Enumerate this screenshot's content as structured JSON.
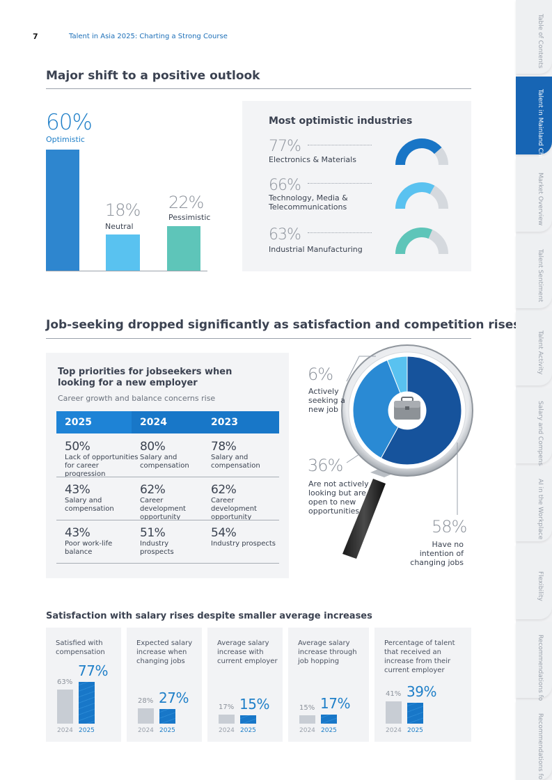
{
  "header": {
    "page_number": "7",
    "doc_title": "Talent in Asia 2025: Charting a Strong Course"
  },
  "outlook": {
    "title": "Major shift to a positive outlook",
    "bars": [
      {
        "pct": "60%",
        "label": "Optimistic",
        "value": 60,
        "color": "#2e86cf"
      },
      {
        "pct": "18%",
        "label": "Neutral",
        "value": 18,
        "color": "#59c2f0"
      },
      {
        "pct": "22%",
        "label": "Pessimistic",
        "value": 22,
        "color": "#5ec5b9"
      }
    ]
  },
  "industries": {
    "title": "Most optimistic industries",
    "items": [
      {
        "pct": "77%",
        "label": "Electronics & Materials",
        "value": 77,
        "color": "#1875c6"
      },
      {
        "pct": "66%",
        "label": "Technology, Media & Telecommunications",
        "value": 66,
        "color": "#5ac2f0"
      },
      {
        "pct": "63%",
        "label": "Industrial Manufacturing",
        "value": 63,
        "color": "#5ec5b9"
      }
    ]
  },
  "jobseeking": {
    "title": "Job-seeking dropped significantly as satisfaction and competition rises",
    "priorities_title": "Top priorities for jobseekers when looking for a new employer",
    "priorities_subtitle": "Career growth and balance concerns rise",
    "years": [
      "2025",
      "2024",
      "2023"
    ],
    "rows": [
      [
        {
          "pct": "50%",
          "label": "Lack of opportunities for career progression"
        },
        {
          "pct": "80%",
          "label": "Salary and compensation"
        },
        {
          "pct": "78%",
          "label": "Salary and compensation"
        }
      ],
      [
        {
          "pct": "43%",
          "label": "Salary and compensation"
        },
        {
          "pct": "62%",
          "label": "Career development opportunity"
        },
        {
          "pct": "62%",
          "label": "Career development opportunity"
        }
      ],
      [
        {
          "pct": "43%",
          "label": "Poor work-life balance"
        },
        {
          "pct": "51%",
          "label": "Industry prospects"
        },
        {
          "pct": "54%",
          "label": "Industry prospects"
        }
      ]
    ],
    "donut": [
      {
        "pct": "6%",
        "label": "Actively seeking a new job",
        "value": 6,
        "color": "#59c2f0"
      },
      {
        "pct": "36%",
        "label": "Are not actively looking but are open to new opportunities",
        "value": 36,
        "color": "#2a8ad4"
      },
      {
        "pct": "58%",
        "label": "Have no intention of changing jobs",
        "value": 58,
        "color": "#16539c"
      }
    ]
  },
  "salary": {
    "title": "Satisfaction with salary rises despite smaller average increases",
    "year_old": "2024",
    "year_new": "2025",
    "cards": [
      {
        "title": "Satisfied with compensation",
        "old_pct": "63%",
        "new_pct": "77%",
        "old": 63,
        "new": 77
      },
      {
        "title": "Expected salary increase when changing jobs",
        "old_pct": "28%",
        "new_pct": "27%",
        "old": 28,
        "new": 27
      },
      {
        "title": "Average salary increase with current employer",
        "old_pct": "17%",
        "new_pct": "15%",
        "old": 17,
        "new": 15
      },
      {
        "title": "Average salary increase through job hopping",
        "old_pct": "15%",
        "new_pct": "17%",
        "old": 15,
        "new": 17
      },
      {
        "title": "Percentage of talent that received an increase from their current employer",
        "old_pct": "41%",
        "new_pct": "39%",
        "old": 41,
        "new": 39
      }
    ]
  },
  "side_tabs": [
    {
      "label": "Table of Contents",
      "active": false
    },
    {
      "label": "Talent in Mainland China: At a Glance",
      "active": true
    },
    {
      "label": "Market Overview",
      "active": false
    },
    {
      "label": "Talent Sentiment",
      "active": false
    },
    {
      "label": "Talent Activity",
      "active": false
    },
    {
      "label": "Salary and Compensation",
      "active": false
    },
    {
      "label": "AI in the Workplace",
      "active": false
    },
    {
      "label": "Flexibility",
      "active": false
    },
    {
      "label": "Recommendations for Talents",
      "active": false
    },
    {
      "label": "Recommendations for Employers",
      "active": false
    }
  ],
  "colors": {
    "accent": "#1877c8",
    "active_tab": "#1765b4",
    "panel": "#f3f4f6"
  }
}
